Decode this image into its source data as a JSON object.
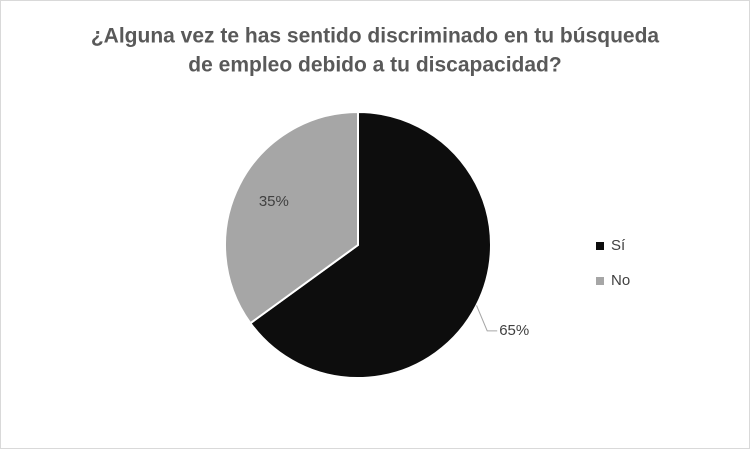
{
  "chart_data": {
    "type": "pie",
    "title": [
      "¿Alguna vez te has sentido discriminado  en tu búsqueda",
      "de empleo debido a tu discapacidad?"
    ],
    "categories": [
      "Sí",
      "No"
    ],
    "values": [
      65,
      35
    ],
    "value_labels": [
      "65%",
      "35%"
    ],
    "colors": [
      "#0d0d0d",
      "#a6a6a6"
    ],
    "legend": "right"
  }
}
